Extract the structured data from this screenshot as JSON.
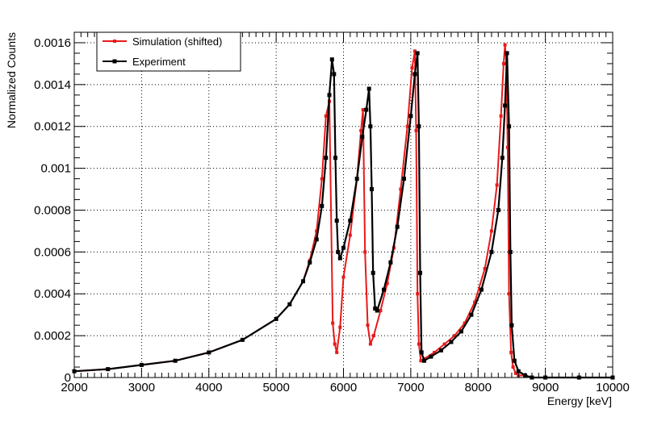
{
  "chart_data": {
    "type": "line",
    "title": "",
    "xlabel": "Energy [keV]",
    "ylabel": "Normalized Counts",
    "xlim": [
      2000,
      10000
    ],
    "ylim": [
      0,
      0.00165
    ],
    "x_ticks": [
      2000,
      3000,
      4000,
      5000,
      6000,
      7000,
      8000,
      9000,
      10000
    ],
    "x_tick_labels": [
      "2000",
      "3000",
      "4000",
      "5000",
      "6000",
      "7000",
      "8000",
      "9000",
      "10000"
    ],
    "y_ticks": [
      0,
      0.0002,
      0.0004,
      0.0006,
      0.0008,
      0.001,
      0.0012,
      0.0014,
      0.0016
    ],
    "y_tick_labels": [
      "0",
      "0.0002",
      "0.0004",
      "0.0006",
      "0.0008",
      "0.001",
      "0.0012",
      "0.0014",
      "0.0016"
    ],
    "grid": true,
    "legend_position": "top-left",
    "series": [
      {
        "name": "Simulation (shifted)",
        "color": "#e8191a",
        "x": [
          2000,
          2500,
          3000,
          3500,
          4000,
          4500,
          5000,
          5200,
          5400,
          5500,
          5600,
          5680,
          5740,
          5790,
          5840,
          5870,
          5900,
          5950,
          6000,
          6100,
          6200,
          6260,
          6290,
          6320,
          6360,
          6400,
          6450,
          6550,
          6650,
          6750,
          6850,
          6950,
          7020,
          7060,
          7080,
          7100,
          7120,
          7150,
          7200,
          7350,
          7500,
          7650,
          7800,
          7950,
          8100,
          8200,
          8280,
          8340,
          8380,
          8400,
          8420,
          8440,
          8460,
          8490,
          8520,
          8560,
          8600,
          8700,
          8800,
          9000,
          9500,
          10000
        ],
        "y": [
          3e-05,
          4e-05,
          6e-05,
          8e-05,
          0.00012,
          0.00018,
          0.00028,
          0.00035,
          0.00046,
          0.00056,
          0.0007,
          0.00095,
          0.00125,
          0.00132,
          0.00026,
          0.00016,
          0.00012,
          0.00024,
          0.00048,
          0.00068,
          0.00095,
          0.00118,
          0.00128,
          0.0006,
          0.00025,
          0.00016,
          0.0002,
          0.00032,
          0.00045,
          0.00062,
          0.0009,
          0.0012,
          0.00148,
          0.00156,
          0.00118,
          0.0004,
          0.00016,
          8e-05,
          9e-05,
          0.00012,
          0.00016,
          0.0002,
          0.00026,
          0.00036,
          0.00052,
          0.0007,
          0.00092,
          0.00125,
          0.0015,
          0.00159,
          0.0015,
          0.0011,
          0.0004,
          0.00012,
          5e-05,
          2e-05,
          1e-05,
          1e-05,
          0.0,
          0.0,
          0.0,
          0.0
        ]
      },
      {
        "name": "Experiment",
        "color": "#000000",
        "x": [
          2000,
          2500,
          3000,
          3500,
          4000,
          4500,
          5000,
          5200,
          5400,
          5500,
          5600,
          5680,
          5740,
          5790,
          5830,
          5860,
          5880,
          5900,
          5920,
          5950,
          6000,
          6100,
          6200,
          6280,
          6340,
          6380,
          6400,
          6420,
          6440,
          6470,
          6500,
          6600,
          6700,
          6800,
          6900,
          7000,
          7060,
          7100,
          7120,
          7140,
          7160,
          7200,
          7300,
          7450,
          7600,
          7750,
          7900,
          8050,
          8200,
          8300,
          8360,
          8400,
          8430,
          8460,
          8480,
          8500,
          8540,
          8600,
          8700,
          8800,
          9000,
          9500,
          10000
        ],
        "y": [
          3e-05,
          4e-05,
          6e-05,
          8e-05,
          0.00012,
          0.00018,
          0.00028,
          0.00035,
          0.00046,
          0.00055,
          0.00066,
          0.00082,
          0.00105,
          0.00135,
          0.00152,
          0.00145,
          0.00105,
          0.00075,
          0.0006,
          0.00057,
          0.00062,
          0.00075,
          0.00095,
          0.00115,
          0.00128,
          0.00138,
          0.0012,
          0.0009,
          0.0005,
          0.00033,
          0.00032,
          0.00042,
          0.00055,
          0.00072,
          0.00095,
          0.00125,
          0.00145,
          0.00155,
          0.0012,
          0.0005,
          0.00012,
          8e-05,
          0.0001,
          0.00013,
          0.00017,
          0.00022,
          0.0003,
          0.00042,
          0.0006,
          0.0008,
          0.00105,
          0.0013,
          0.00155,
          0.0012,
          0.0006,
          0.00025,
          8e-05,
          3e-05,
          1e-05,
          0.0,
          0.0,
          0.0,
          0.0
        ]
      }
    ]
  }
}
